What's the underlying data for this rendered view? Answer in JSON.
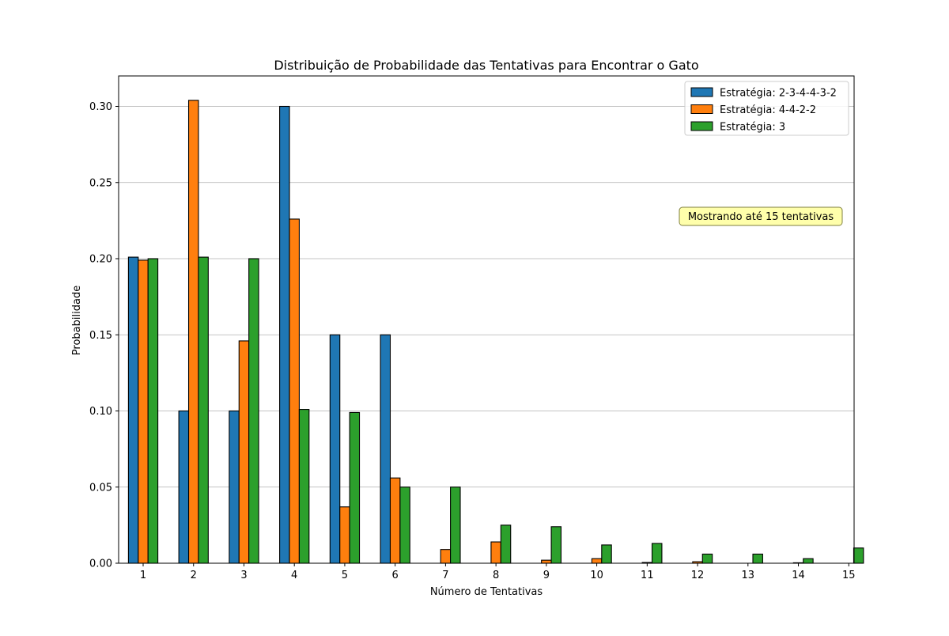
{
  "chart_data": {
    "type": "bar",
    "title": "Distribuição de Probabilidade das Tentativas para Encontrar o Gato",
    "xlabel": "Número de Tentativas",
    "ylabel": "Probabilidade",
    "categories": [
      "1",
      "2",
      "3",
      "4",
      "5",
      "6",
      "7",
      "8",
      "9",
      "10",
      "11",
      "12",
      "13",
      "14",
      "15"
    ],
    "ylim": [
      0,
      0.32
    ],
    "yticks": [
      "0.00",
      "0.05",
      "0.10",
      "0.15",
      "0.20",
      "0.25",
      "0.30"
    ],
    "grid": "y",
    "legend_position": "top-right",
    "annotation": "Mostrando até 15 tentativas",
    "annotation_color": "#ffff66",
    "series": [
      {
        "name": "Estratégia: 2-3-4-4-3-2",
        "color": "#1f77b4",
        "values": [
          0.201,
          0.1,
          0.1,
          0.3,
          0.15,
          0.15,
          0,
          0,
          0,
          0,
          0,
          0,
          0,
          0,
          0
        ]
      },
      {
        "name": "Estratégia: 4-4-2-2",
        "color": "#ff7f0e",
        "values": [
          0.199,
          0.304,
          0.146,
          0.226,
          0.037,
          0.056,
          0.009,
          0.014,
          0.002,
          0.003,
          0.0005,
          0.001,
          0,
          0.0003,
          0
        ]
      },
      {
        "name": "Estratégia: 3",
        "color": "#2ca02c",
        "values": [
          0.2,
          0.201,
          0.2,
          0.101,
          0.099,
          0.05,
          0.05,
          0.025,
          0.024,
          0.012,
          0.013,
          0.006,
          0.006,
          0.003,
          0.01
        ]
      }
    ]
  }
}
